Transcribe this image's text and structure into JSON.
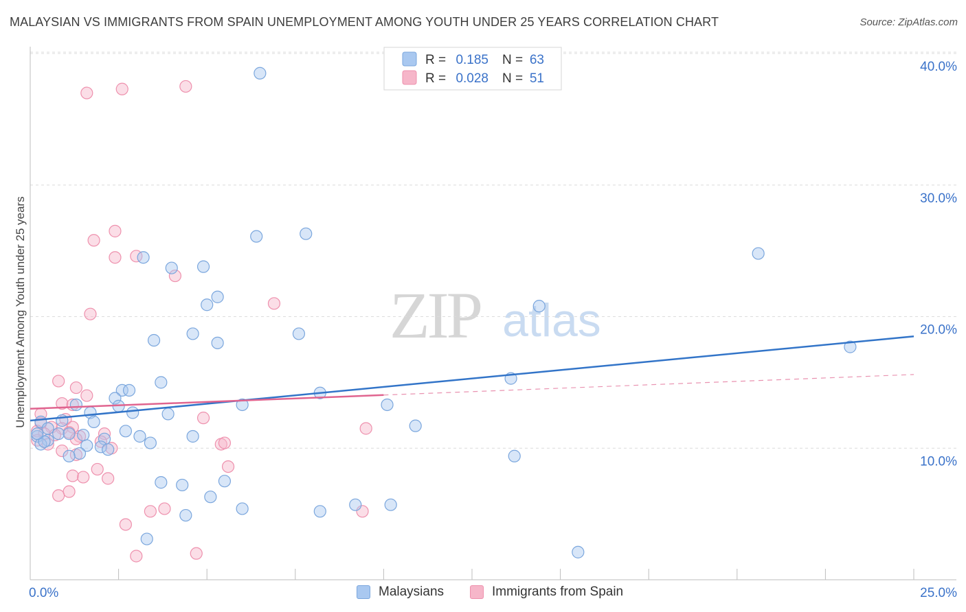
{
  "title": "MALAYSIAN VS IMMIGRANTS FROM SPAIN UNEMPLOYMENT AMONG YOUTH UNDER 25 YEARS CORRELATION CHART",
  "source": "Source: ZipAtlas.com",
  "watermark": {
    "zip": "ZIP",
    "atlas": "atlas"
  },
  "colors": {
    "blue_fill": "#a9c8f0",
    "blue_stroke": "#7aa6dd",
    "blue_line": "#3274c8",
    "pink_fill": "#f6b6c9",
    "pink_stroke": "#ee90ad",
    "pink_line": "#e0648f",
    "axis_text": "#3a72c9",
    "grid": "#dcdcdc"
  },
  "legend_top": {
    "rows": [
      {
        "r_label": "R =",
        "r_value": "0.185",
        "n_label": "N =",
        "n_value": "63"
      },
      {
        "r_label": "R =",
        "r_value": "0.028",
        "n_label": "N =",
        "n_value": "51"
      }
    ]
  },
  "legend_bottom": {
    "series1": "Malaysians",
    "series2": "Immigrants from Spain"
  },
  "chart_data": {
    "type": "scatter",
    "title": "MALAYSIAN VS IMMIGRANTS FROM SPAIN UNEMPLOYMENT AMONG YOUTH UNDER 25 YEARS CORRELATION CHART",
    "xlabel": "",
    "ylabel": "Unemployment Among Youth under 25 years",
    "xlim": [
      0,
      25
    ],
    "ylim": [
      0,
      40
    ],
    "x_tick_labels": {
      "min": "0.0%",
      "max": "25.0%"
    },
    "y_ticks": [
      {
        "value": 10,
        "label": "10.0%"
      },
      {
        "value": 20,
        "label": "20.0%"
      },
      {
        "value": 30,
        "label": "30.0%"
      },
      {
        "value": 40,
        "label": "40.0%"
      }
    ],
    "grid": true,
    "series": [
      {
        "name": "Malaysians",
        "R": 0.185,
        "N": 63,
        "trend": {
          "x0": 0,
          "y0": 12.1,
          "x1": 25,
          "y1": 18.5,
          "solid_until": 25
        },
        "points": [
          [
            6.5,
            38.5
          ],
          [
            3.2,
            24.5
          ],
          [
            4.0,
            23.7
          ],
          [
            4.9,
            23.8
          ],
          [
            6.4,
            26.1
          ],
          [
            7.8,
            26.3
          ],
          [
            5.3,
            21.5
          ],
          [
            5.0,
            20.9
          ],
          [
            4.6,
            18.7
          ],
          [
            5.3,
            18.0
          ],
          [
            3.5,
            18.2
          ],
          [
            7.6,
            18.7
          ],
          [
            14.4,
            20.8
          ],
          [
            20.6,
            24.8
          ],
          [
            23.2,
            17.7
          ],
          [
            13.6,
            15.3
          ],
          [
            3.7,
            15.0
          ],
          [
            2.6,
            14.4
          ],
          [
            2.8,
            14.4
          ],
          [
            8.2,
            14.2
          ],
          [
            2.4,
            13.8
          ],
          [
            2.5,
            13.2
          ],
          [
            1.3,
            13.3
          ],
          [
            6.0,
            13.3
          ],
          [
            10.1,
            13.3
          ],
          [
            1.7,
            12.7
          ],
          [
            2.9,
            12.7
          ],
          [
            3.9,
            12.6
          ],
          [
            0.3,
            12.0
          ],
          [
            0.9,
            12.1
          ],
          [
            1.8,
            12.0
          ],
          [
            0.5,
            11.5
          ],
          [
            0.8,
            11.1
          ],
          [
            1.1,
            11.1
          ],
          [
            2.7,
            11.3
          ],
          [
            10.9,
            11.7
          ],
          [
            0.2,
            10.9
          ],
          [
            0.5,
            10.6
          ],
          [
            1.5,
            11.0
          ],
          [
            3.1,
            10.9
          ],
          [
            4.6,
            10.9
          ],
          [
            2.1,
            10.7
          ],
          [
            0.3,
            10.3
          ],
          [
            0.4,
            10.5
          ],
          [
            1.6,
            10.2
          ],
          [
            2.0,
            10.1
          ],
          [
            2.2,
            9.9
          ],
          [
            3.4,
            10.4
          ],
          [
            1.4,
            9.6
          ],
          [
            1.1,
            9.4
          ],
          [
            13.7,
            9.4
          ],
          [
            3.7,
            7.4
          ],
          [
            4.3,
            7.2
          ],
          [
            5.5,
            7.5
          ],
          [
            5.1,
            6.3
          ],
          [
            6.0,
            5.4
          ],
          [
            8.2,
            5.2
          ],
          [
            9.2,
            5.7
          ],
          [
            10.2,
            5.7
          ],
          [
            4.4,
            4.9
          ],
          [
            3.3,
            3.1
          ],
          [
            15.5,
            2.1
          ],
          [
            0.2,
            11.1
          ]
        ]
      },
      {
        "name": "Immigrants from Spain",
        "R": 0.028,
        "N": 51,
        "trend": {
          "x0": 0,
          "y0": 13.0,
          "x1": 25,
          "y1": 15.6,
          "solid_until": 10
        },
        "points": [
          [
            1.6,
            37.0
          ],
          [
            2.6,
            37.3
          ],
          [
            4.4,
            37.5
          ],
          [
            2.4,
            26.5
          ],
          [
            1.8,
            25.8
          ],
          [
            2.4,
            24.5
          ],
          [
            3.0,
            24.6
          ],
          [
            4.1,
            23.1
          ],
          [
            6.9,
            21.0
          ],
          [
            1.7,
            20.2
          ],
          [
            0.8,
            15.1
          ],
          [
            1.3,
            14.6
          ],
          [
            1.6,
            14.0
          ],
          [
            0.9,
            13.4
          ],
          [
            1.2,
            13.3
          ],
          [
            0.3,
            12.6
          ],
          [
            1.0,
            12.2
          ],
          [
            4.9,
            12.3
          ],
          [
            0.3,
            11.9
          ],
          [
            0.6,
            11.6
          ],
          [
            0.9,
            11.5
          ],
          [
            1.2,
            11.6
          ],
          [
            0.2,
            11.3
          ],
          [
            0.4,
            11.1
          ],
          [
            1.1,
            11.2
          ],
          [
            0.7,
            11.0
          ],
          [
            1.4,
            10.9
          ],
          [
            2.1,
            11.1
          ],
          [
            9.5,
            11.5
          ],
          [
            0.2,
            10.6
          ],
          [
            0.5,
            10.3
          ],
          [
            1.3,
            10.7
          ],
          [
            2.0,
            10.5
          ],
          [
            5.4,
            10.3
          ],
          [
            5.5,
            10.4
          ],
          [
            2.3,
            10.0
          ],
          [
            0.9,
            9.8
          ],
          [
            1.3,
            9.5
          ],
          [
            5.6,
            8.6
          ],
          [
            1.9,
            8.4
          ],
          [
            1.2,
            7.9
          ],
          [
            1.5,
            7.8
          ],
          [
            2.2,
            7.7
          ],
          [
            1.1,
            6.7
          ],
          [
            0.8,
            6.4
          ],
          [
            3.4,
            5.2
          ],
          [
            3.8,
            5.4
          ],
          [
            9.4,
            5.2
          ],
          [
            2.7,
            4.2
          ],
          [
            4.7,
            2.0
          ],
          [
            3.0,
            1.8
          ]
        ]
      }
    ]
  }
}
